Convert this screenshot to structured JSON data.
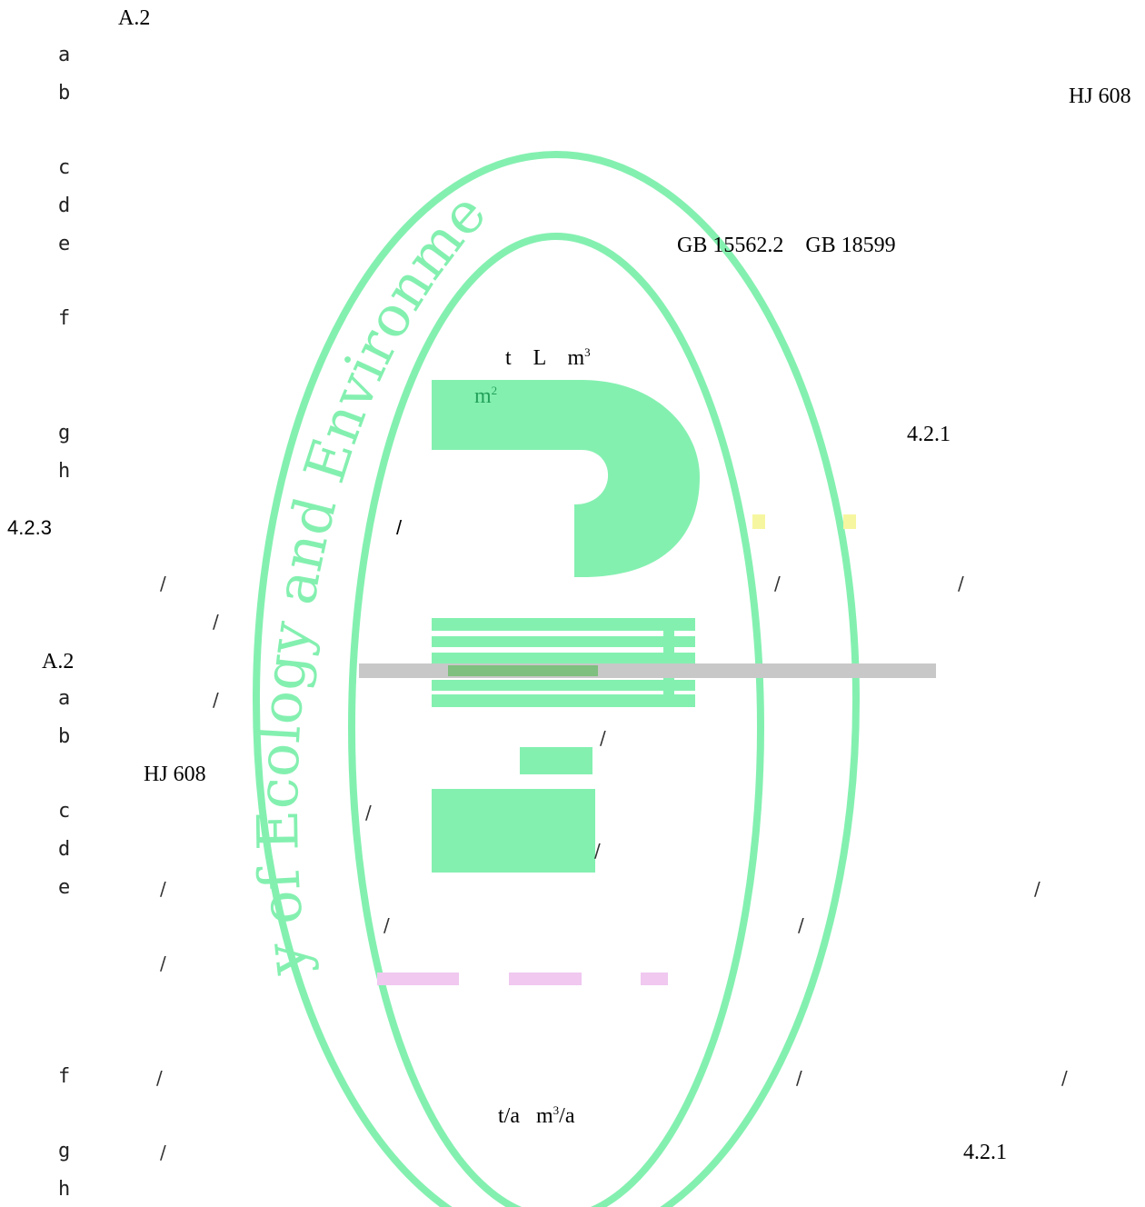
{
  "watermark": {
    "color": "#7ff0b0",
    "arc_text": "y of Ecology and Environment"
  },
  "lines": {
    "a2_top": "A.2",
    "s1": {
      "a": "a",
      "b": "b",
      "c": "c",
      "d": "d",
      "e": "e",
      "f": "f",
      "g": "g",
      "h": "h"
    },
    "hj608_top": "HJ 608",
    "gb_refs": "GB 15562.2    GB 18599",
    "units_1": "t    L    m",
    "units_1_sup": "3",
    "units_2": "m",
    "units_2_sup": "2",
    "ref_421_top": "4.2.1",
    "section_423": "4.2.3",
    "section_423_slash": "/",
    "a2_mid": "A.2",
    "s2": {
      "a": "a",
      "b": "b",
      "c": "c",
      "d": "d",
      "e": "e",
      "f": "f",
      "g": "g",
      "h": "h"
    },
    "hj608_mid": "HJ 608",
    "slash": "/",
    "units_3a": "t/a",
    "units_3b": "m",
    "units_3b_sup": "3",
    "units_3b_tail": "/a",
    "ref_421_bottom": "4.2.1"
  }
}
